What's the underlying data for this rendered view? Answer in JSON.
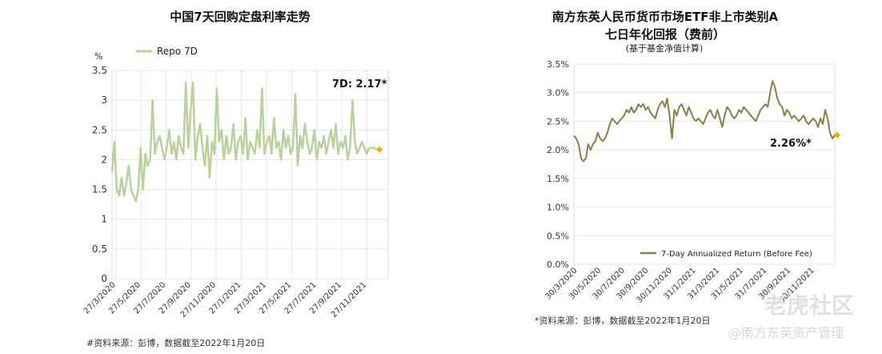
{
  "chart_data": [
    {
      "type": "line",
      "title": "中国7天回购定盘利率走势",
      "ylabel": "%",
      "ylim": [
        0,
        3.5
      ],
      "yticks": [
        "0",
        "0.5",
        "1",
        "1.5",
        "2",
        "2.5",
        "3",
        "3.5"
      ],
      "x_tick_labels": [
        "27/3/2020",
        "27/5/2020",
        "27/7/2020",
        "27/9/2020",
        "27/11/2020",
        "27/1/2021",
        "27/3/2021",
        "27/5/2021",
        "27/7/2021",
        "27/9/2021",
        "27/11/2021"
      ],
      "grid": true,
      "legend": "top-left",
      "series": [
        {
          "name": "Repo 7D",
          "color": "#b9d19a",
          "x": [
            0,
            0.2,
            0.4,
            0.6,
            0.8,
            1.0,
            1.2,
            1.4,
            1.6,
            1.8,
            2.0,
            2.2,
            2.4,
            2.6,
            2.8,
            3.0,
            3.2,
            3.4,
            3.6,
            3.8,
            4.0,
            4.2,
            4.4,
            4.6,
            4.8,
            5.0,
            5.2,
            5.4,
            5.6,
            5.8,
            6.0,
            6.2,
            6.4,
            6.6,
            6.8,
            7.0,
            7.2,
            7.4,
            7.6,
            7.8,
            8.0,
            8.2,
            8.4,
            8.6,
            8.8,
            9.0,
            9.2,
            9.4,
            9.6,
            9.8,
            10.0,
            10.2,
            10.4,
            10.6,
            10.8,
            11.0,
            11.2,
            11.4,
            11.6,
            11.8,
            12.0,
            12.2,
            12.4,
            12.6,
            12.8,
            13.0,
            13.2,
            13.4,
            13.6,
            13.8,
            14.0,
            14.2,
            14.4,
            14.6,
            14.8,
            15.0,
            15.2,
            15.4,
            15.6,
            15.8,
            16.0,
            16.2,
            16.4,
            16.6,
            16.8,
            17.0,
            17.2,
            17.4,
            17.6,
            17.8,
            18.0,
            18.2,
            18.4,
            18.6,
            18.8,
            19.0,
            19.2,
            19.4,
            19.6,
            19.8,
            20.0,
            20.2,
            20.4,
            20.6,
            20.8,
            21.0,
            21.2,
            21.4,
            21.6,
            21.8,
            22.0,
            22.2
          ],
          "values": [
            1.8,
            2.3,
            1.5,
            1.4,
            1.7,
            1.4,
            1.6,
            1.9,
            1.5,
            1.4,
            1.3,
            1.5,
            2.2,
            1.5,
            2.1,
            1.9,
            2.0,
            3.0,
            2.1,
            2.3,
            2.4,
            2.2,
            2.0,
            2.2,
            2.5,
            2.1,
            2.3,
            2.0,
            2.4,
            2.2,
            2.1,
            3.3,
            2.2,
            2.8,
            3.3,
            2.0,
            2.4,
            2.6,
            2.2,
            1.9,
            2.4,
            1.7,
            2.3,
            2.1,
            3.2,
            2.3,
            2.5,
            2.0,
            2.4,
            2.1,
            2.2,
            2.6,
            2.0,
            2.3,
            2.4,
            2.1,
            2.7,
            2.0,
            2.3,
            2.2,
            2.1,
            2.5,
            2.2,
            3.2,
            2.1,
            2.3,
            2.4,
            2.1,
            2.7,
            2.2,
            2.3,
            2.0,
            2.5,
            2.2,
            2.4,
            2.1,
            2.2,
            3.1,
            1.9,
            2.4,
            2.2,
            2.6,
            2.3,
            2.1,
            2.2,
            2.5,
            2.0,
            2.3,
            2.2,
            2.4,
            2.1,
            2.3,
            2.5,
            2.2,
            2.6,
            2.1,
            2.3,
            2.2,
            2.4,
            2.0,
            2.2,
            3.0,
            2.3,
            2.1,
            2.2,
            2.3,
            2.2,
            2.1,
            2.2,
            2.2,
            2.2,
            2.17
          ]
        }
      ],
      "annotation": "7D: 2.17*",
      "marker_color": "#f5a800",
      "source_note": "#资料来源：彭博，数据截至2022年1月20日"
    },
    {
      "type": "line",
      "title": "南方东英人民币货币市场ETF非上市类别A",
      "title_line2": "七日年化回报（费前）",
      "subtitle": "(基于基金净值计算)",
      "ylim": [
        0,
        3.5
      ],
      "yticks": [
        "0.0%",
        "0.5%",
        "1.0%",
        "1.5%",
        "2.0%",
        "2.5%",
        "3.0%",
        "3.5%"
      ],
      "x_tick_labels": [
        "30/3/2020",
        "30/5/2020",
        "30/7/2020",
        "30/9/2020",
        "30/11/2020",
        "31/1/2021",
        "31/3/2021",
        "31/5/2021",
        "31/7/2021",
        "30/9/2021",
        "30/11/2021"
      ],
      "grid": true,
      "legend": "bottom-right",
      "series": [
        {
          "name": "7-Day Annualized Return (Before Fee)",
          "color": "#8e7c45",
          "x": [
            0,
            0.2,
            0.4,
            0.6,
            0.8,
            1.0,
            1.2,
            1.4,
            1.6,
            1.8,
            2.0,
            2.2,
            2.4,
            2.6,
            2.8,
            3.0,
            3.2,
            3.4,
            3.6,
            3.8,
            4.0,
            4.2,
            4.4,
            4.6,
            4.8,
            5.0,
            5.2,
            5.4,
            5.6,
            5.8,
            6.0,
            6.2,
            6.4,
            6.6,
            6.8,
            7.0,
            7.2,
            7.4,
            7.6,
            7.8,
            8.0,
            8.2,
            8.4,
            8.6,
            8.8,
            9.0,
            9.2,
            9.4,
            9.6,
            9.8,
            10.0,
            10.2,
            10.4,
            10.6,
            10.8,
            11.0,
            11.2,
            11.4,
            11.6,
            11.8,
            12.0,
            12.2,
            12.4,
            12.6,
            12.8,
            13.0,
            13.2,
            13.4,
            13.6,
            13.8,
            14.0,
            14.2,
            14.4,
            14.6,
            14.8,
            15.0,
            15.2,
            15.4,
            15.6,
            15.8,
            16.0,
            16.2,
            16.4,
            16.6,
            16.8,
            17.0,
            17.2,
            17.4,
            17.6,
            17.8,
            18.0,
            18.2,
            18.4,
            18.6,
            18.8,
            19.0,
            19.2,
            19.4,
            19.6,
            19.8,
            20.0,
            20.2,
            20.4,
            20.6,
            20.8,
            21.0,
            21.2,
            21.4,
            21.6,
            21.8
          ],
          "values": [
            2.25,
            2.2,
            2.1,
            1.85,
            1.8,
            1.85,
            2.1,
            2.0,
            2.1,
            2.15,
            2.3,
            2.2,
            2.15,
            2.2,
            2.3,
            2.45,
            2.55,
            2.5,
            2.45,
            2.5,
            2.55,
            2.6,
            2.7,
            2.65,
            2.75,
            2.65,
            2.7,
            2.8,
            2.75,
            2.8,
            2.7,
            2.75,
            2.65,
            2.6,
            2.55,
            2.7,
            2.8,
            2.85,
            2.75,
            2.9,
            2.6,
            2.2,
            2.7,
            2.6,
            2.75,
            2.8,
            2.7,
            2.6,
            2.75,
            2.65,
            2.55,
            2.5,
            2.55,
            2.5,
            2.45,
            2.55,
            2.65,
            2.7,
            2.6,
            2.55,
            2.7,
            2.55,
            2.4,
            2.6,
            2.75,
            2.7,
            2.6,
            2.55,
            2.6,
            2.7,
            2.65,
            2.75,
            2.7,
            2.65,
            2.6,
            2.55,
            2.5,
            2.6,
            2.7,
            2.75,
            2.8,
            2.75,
            3.0,
            3.2,
            3.1,
            2.9,
            2.8,
            2.75,
            2.6,
            2.7,
            2.65,
            2.55,
            2.6,
            2.55,
            2.5,
            2.55,
            2.6,
            2.5,
            2.45,
            2.5,
            2.55,
            2.5,
            2.4,
            2.55,
            2.45,
            2.7,
            2.55,
            2.3,
            2.2,
            2.26
          ]
        }
      ],
      "annotation": "2.26%*",
      "marker_color": "#f5a800",
      "source_note": "*资料来源：彭博，数据截至2022年1月20日"
    }
  ],
  "watermark": {
    "text1": "老虎社区",
    "text2": "@南方东英资产管理"
  }
}
